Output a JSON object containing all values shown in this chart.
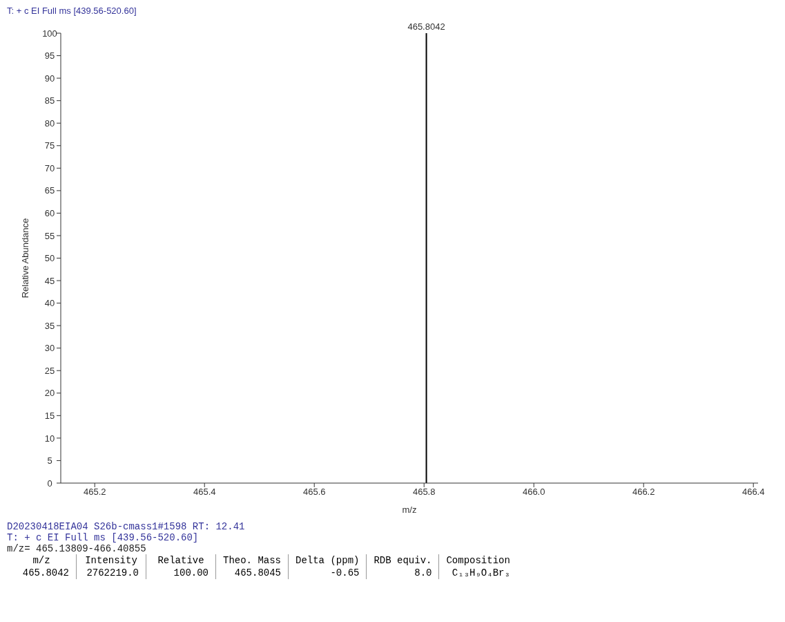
{
  "chart_data": {
    "type": "bar",
    "title": "T: + c EI Full ms [439.56-520.60]",
    "xlabel": "m/z",
    "ylabel": "Relative Abundance",
    "x": [
      465.8042
    ],
    "values": [
      100
    ],
    "color": "#000000",
    "xlim": [
      465.13809,
      466.40855
    ],
    "xticks": [
      465.2,
      465.4,
      465.6,
      465.8,
      {
        "value": 466.0,
        "label": "466.0"
      },
      466.2,
      466.4
    ],
    "ylim": [
      0,
      100
    ],
    "yticks": [
      0,
      5,
      10,
      15,
      20,
      25,
      30,
      35,
      40,
      45,
      50,
      55,
      60,
      65,
      70,
      75,
      80,
      85,
      90,
      95,
      100
    ],
    "annotations": [
      {
        "text": "465.8042",
        "x": 465.8042,
        "y": 100
      },
      "D20230418EIA04 S26b-cmass1#1598 RT: 12.41",
      "T: + c EI Full ms [439.56-520.60]",
      "m/z= 465.13809-466.40855",
      "m/z",
      "Intensity",
      "Relative",
      "Theo. Mass",
      "Delta (ppm)",
      "RDB equiv.",
      "Composition",
      "465.8042",
      "2762219.0",
      "100.00",
      "465.8045",
      "-0.65",
      "8.0",
      "C₁₃H₉O₄Br₃"
    ]
  }
}
